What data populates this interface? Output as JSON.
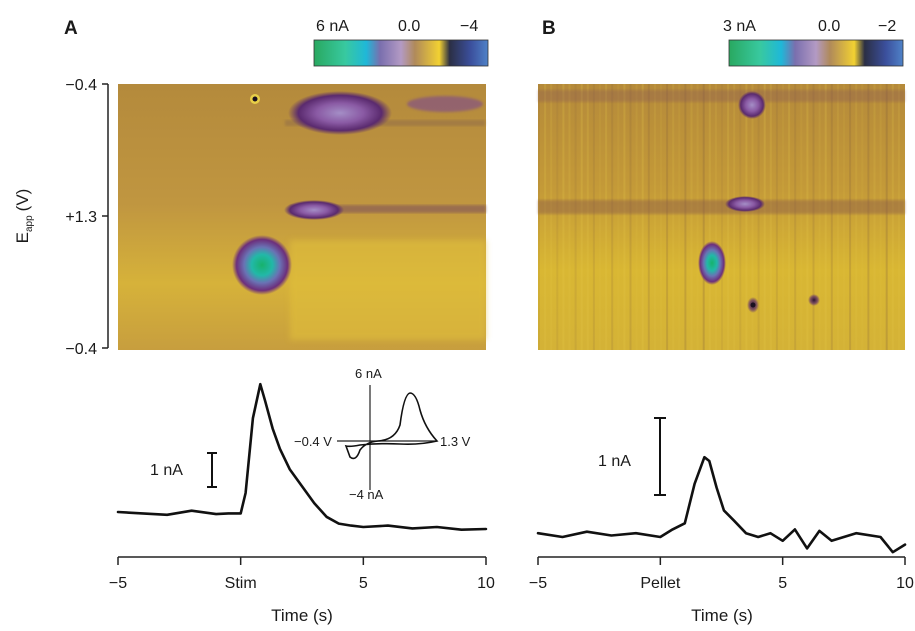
{
  "chart_data": [
    {
      "panel": "A",
      "type": "heatmap",
      "colorbar": {
        "labels": [
          "6 nA",
          "0.0",
          "−4"
        ]
      },
      "ylabel": "E",
      "ylabel_sub": "app",
      "ylabel_unit": "(V)",
      "yticks": [
        "−0.4",
        "+1.3",
        "−0.4"
      ],
      "hotspots": [
        {
          "time": 0.8,
          "potential_index": 0.68,
          "current_nA": 6.0
        },
        {
          "time": 3.5,
          "potential_index": 0.1,
          "current_nA": -4.0
        },
        {
          "time": 3.0,
          "potential_index": 0.5,
          "current_nA": -2.0
        }
      ]
    },
    {
      "panel": "A",
      "type": "line",
      "x": [
        -5,
        -4,
        -3,
        -2,
        -1,
        -0.5,
        0,
        0.2,
        0.5,
        0.8,
        1.0,
        1.3,
        1.6,
        2.0,
        2.5,
        3.0,
        3.5,
        4.0,
        4.5,
        5,
        6,
        7,
        8,
        9,
        10
      ],
      "y": [
        0.22,
        0.2,
        0.18,
        0.24,
        0.19,
        0.2,
        0.2,
        0.5,
        1.6,
        2.1,
        1.85,
        1.45,
        1.15,
        0.85,
        0.6,
        0.35,
        0.15,
        0.05,
        0.02,
        0.0,
        0.02,
        -0.02,
        0.0,
        -0.04,
        -0.03
      ],
      "xlim": [
        -5,
        10
      ],
      "xticks": [
        "−5",
        "Stim",
        "5",
        "10"
      ],
      "xlabel": "Time (s)",
      "scalebar_label": "1 nA",
      "inset": {
        "type": "line",
        "labels": {
          "top": "6 nA",
          "bottom": "−4 nA",
          "left": "−0.4 V",
          "right": "1.3 V"
        }
      }
    },
    {
      "panel": "B",
      "type": "heatmap",
      "colorbar": {
        "labels": [
          "3 nA",
          "0.0",
          "−2"
        ]
      },
      "hotspots": [
        {
          "time": 2.0,
          "potential_index": 0.68,
          "current_nA": 3.0
        },
        {
          "time": 3.0,
          "potential_index": 0.45,
          "current_nA": -1.5
        },
        {
          "time": 3.5,
          "potential_index": 0.08,
          "current_nA": -2.0
        }
      ]
    },
    {
      "panel": "B",
      "type": "line",
      "x": [
        -5,
        -4,
        -3,
        -2,
        -1,
        0,
        0.5,
        1.0,
        1.4,
        1.8,
        2.0,
        2.3,
        2.6,
        3.0,
        3.5,
        4.0,
        4.5,
        5,
        5.5,
        6,
        6.5,
        7,
        8,
        9,
        9.5,
        10
      ],
      "y": [
        0.05,
        0.0,
        0.07,
        0.02,
        0.05,
        0.0,
        0.1,
        0.18,
        0.7,
        1.05,
        1.0,
        0.65,
        0.35,
        0.22,
        0.05,
        0.0,
        0.05,
        -0.05,
        0.1,
        -0.15,
        0.08,
        -0.05,
        0.05,
        0.0,
        -0.2,
        -0.1
      ],
      "xlim": [
        -5,
        10
      ],
      "xticks": [
        "−5",
        "Pellet",
        "5",
        "10"
      ],
      "xlabel": "Time (s)",
      "scalebar_label": "1 nA"
    }
  ],
  "panels": {
    "a": "A",
    "b": "B"
  }
}
